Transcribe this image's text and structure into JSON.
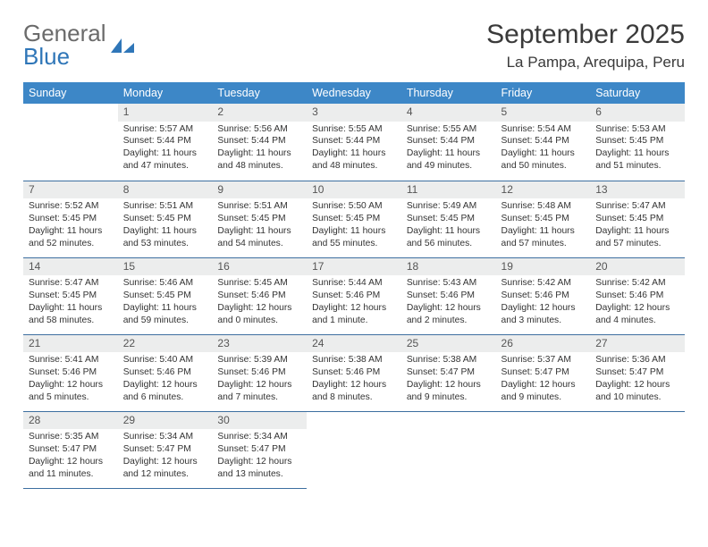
{
  "brand": {
    "word1": "General",
    "word2": "Blue"
  },
  "title": "September 2025",
  "location": "La Pampa, Arequipa, Peru",
  "colors": {
    "header_bg": "#3d87c7",
    "header_text": "#ffffff",
    "daynum_bg": "#eceded",
    "row_border": "#3d6fa0",
    "brand_gray": "#6b6b6b",
    "brand_blue": "#2f76b8"
  },
  "weekdays": [
    "Sunday",
    "Monday",
    "Tuesday",
    "Wednesday",
    "Thursday",
    "Friday",
    "Saturday"
  ],
  "leading_blanks": 1,
  "days": [
    {
      "n": "1",
      "sr": "5:57 AM",
      "ss": "5:44 PM",
      "dl": "11 hours and 47 minutes."
    },
    {
      "n": "2",
      "sr": "5:56 AM",
      "ss": "5:44 PM",
      "dl": "11 hours and 48 minutes."
    },
    {
      "n": "3",
      "sr": "5:55 AM",
      "ss": "5:44 PM",
      "dl": "11 hours and 48 minutes."
    },
    {
      "n": "4",
      "sr": "5:55 AM",
      "ss": "5:44 PM",
      "dl": "11 hours and 49 minutes."
    },
    {
      "n": "5",
      "sr": "5:54 AM",
      "ss": "5:44 PM",
      "dl": "11 hours and 50 minutes."
    },
    {
      "n": "6",
      "sr": "5:53 AM",
      "ss": "5:45 PM",
      "dl": "11 hours and 51 minutes."
    },
    {
      "n": "7",
      "sr": "5:52 AM",
      "ss": "5:45 PM",
      "dl": "11 hours and 52 minutes."
    },
    {
      "n": "8",
      "sr": "5:51 AM",
      "ss": "5:45 PM",
      "dl": "11 hours and 53 minutes."
    },
    {
      "n": "9",
      "sr": "5:51 AM",
      "ss": "5:45 PM",
      "dl": "11 hours and 54 minutes."
    },
    {
      "n": "10",
      "sr": "5:50 AM",
      "ss": "5:45 PM",
      "dl": "11 hours and 55 minutes."
    },
    {
      "n": "11",
      "sr": "5:49 AM",
      "ss": "5:45 PM",
      "dl": "11 hours and 56 minutes."
    },
    {
      "n": "12",
      "sr": "5:48 AM",
      "ss": "5:45 PM",
      "dl": "11 hours and 57 minutes."
    },
    {
      "n": "13",
      "sr": "5:47 AM",
      "ss": "5:45 PM",
      "dl": "11 hours and 57 minutes."
    },
    {
      "n": "14",
      "sr": "5:47 AM",
      "ss": "5:45 PM",
      "dl": "11 hours and 58 minutes."
    },
    {
      "n": "15",
      "sr": "5:46 AM",
      "ss": "5:45 PM",
      "dl": "11 hours and 59 minutes."
    },
    {
      "n": "16",
      "sr": "5:45 AM",
      "ss": "5:46 PM",
      "dl": "12 hours and 0 minutes."
    },
    {
      "n": "17",
      "sr": "5:44 AM",
      "ss": "5:46 PM",
      "dl": "12 hours and 1 minute."
    },
    {
      "n": "18",
      "sr": "5:43 AM",
      "ss": "5:46 PM",
      "dl": "12 hours and 2 minutes."
    },
    {
      "n": "19",
      "sr": "5:42 AM",
      "ss": "5:46 PM",
      "dl": "12 hours and 3 minutes."
    },
    {
      "n": "20",
      "sr": "5:42 AM",
      "ss": "5:46 PM",
      "dl": "12 hours and 4 minutes."
    },
    {
      "n": "21",
      "sr": "5:41 AM",
      "ss": "5:46 PM",
      "dl": "12 hours and 5 minutes."
    },
    {
      "n": "22",
      "sr": "5:40 AM",
      "ss": "5:46 PM",
      "dl": "12 hours and 6 minutes."
    },
    {
      "n": "23",
      "sr": "5:39 AM",
      "ss": "5:46 PM",
      "dl": "12 hours and 7 minutes."
    },
    {
      "n": "24",
      "sr": "5:38 AM",
      "ss": "5:46 PM",
      "dl": "12 hours and 8 minutes."
    },
    {
      "n": "25",
      "sr": "5:38 AM",
      "ss": "5:47 PM",
      "dl": "12 hours and 9 minutes."
    },
    {
      "n": "26",
      "sr": "5:37 AM",
      "ss": "5:47 PM",
      "dl": "12 hours and 9 minutes."
    },
    {
      "n": "27",
      "sr": "5:36 AM",
      "ss": "5:47 PM",
      "dl": "12 hours and 10 minutes."
    },
    {
      "n": "28",
      "sr": "5:35 AM",
      "ss": "5:47 PM",
      "dl": "12 hours and 11 minutes."
    },
    {
      "n": "29",
      "sr": "5:34 AM",
      "ss": "5:47 PM",
      "dl": "12 hours and 12 minutes."
    },
    {
      "n": "30",
      "sr": "5:34 AM",
      "ss": "5:47 PM",
      "dl": "12 hours and 13 minutes."
    }
  ],
  "labels": {
    "sunrise": "Sunrise:",
    "sunset": "Sunset:",
    "daylight": "Daylight:"
  }
}
